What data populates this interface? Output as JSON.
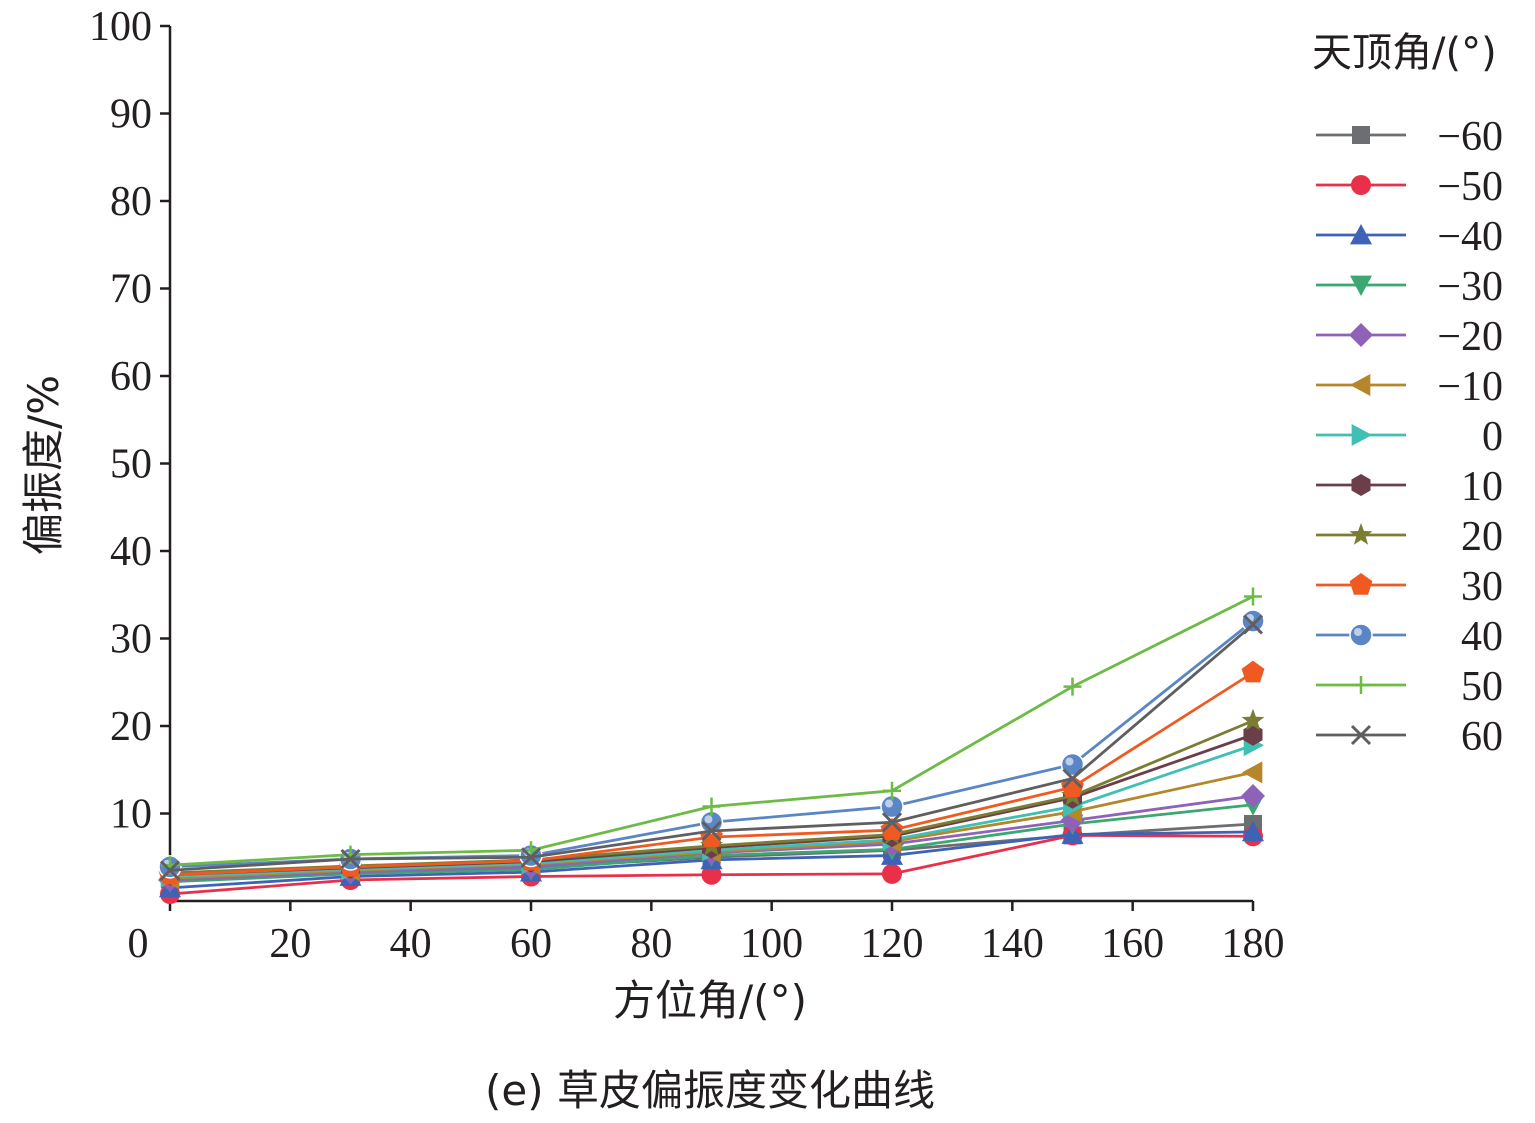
{
  "chart_data": {
    "type": "line",
    "caption": "(e) 草皮偏振度变化曲线",
    "xlabel": "方位角/(°)",
    "ylabel": "偏振度/%",
    "legend_title": "天顶角/(°)",
    "legend_position": "right",
    "xlim": [
      0,
      180
    ],
    "ylim": [
      0,
      100
    ],
    "x_ticks": [
      "0",
      "20",
      "40",
      "60",
      "80",
      "100",
      "120",
      "140",
      "160",
      "180"
    ],
    "x_tick_values": [
      0,
      20,
      40,
      60,
      80,
      100,
      120,
      140,
      160,
      180
    ],
    "y_ticks": [
      "10",
      "20",
      "30",
      "40",
      "50",
      "60",
      "70",
      "80",
      "90",
      "100"
    ],
    "y_tick_values": [
      10,
      20,
      30,
      40,
      50,
      60,
      70,
      80,
      90,
      100
    ],
    "grid": false,
    "x": [
      0,
      30,
      60,
      90,
      120,
      150,
      180
    ],
    "series": [
      {
        "name": "−60",
        "color": "#6d6e71",
        "marker": "square",
        "values": [
          2.5,
          3.2,
          3.8,
          5.0,
          5.8,
          7.5,
          8.8
        ]
      },
      {
        "name": "−50",
        "color": "#e8304a",
        "marker": "circle",
        "values": [
          0.8,
          2.4,
          2.8,
          3.0,
          3.1,
          7.5,
          7.4
        ]
      },
      {
        "name": "−40",
        "color": "#3e63b6",
        "marker": "triangle-up",
        "values": [
          1.5,
          2.8,
          3.3,
          4.7,
          5.2,
          7.6,
          7.9
        ]
      },
      {
        "name": "−30",
        "color": "#3aa870",
        "marker": "triangle-down",
        "values": [
          2.2,
          3.1,
          3.6,
          5.2,
          5.9,
          8.8,
          11.0
        ]
      },
      {
        "name": "−20",
        "color": "#8e62b8",
        "marker": "diamond",
        "values": [
          2.4,
          3.3,
          3.9,
          5.5,
          6.5,
          9.2,
          12.0
        ]
      },
      {
        "name": "−10",
        "color": "#b5862a",
        "marker": "triangle-left",
        "values": [
          2.6,
          3.5,
          4.2,
          5.6,
          6.8,
          10.2,
          14.7
        ]
      },
      {
        "name": "0",
        "color": "#40bfb4",
        "marker": "triangle-right",
        "values": [
          2.8,
          3.6,
          4.3,
          5.8,
          7.0,
          10.8,
          17.8
        ]
      },
      {
        "name": "10",
        "color": "#6b3e4a",
        "marker": "hexagon",
        "values": [
          3.0,
          3.8,
          4.5,
          6.1,
          7.4,
          11.8,
          19.0
        ]
      },
      {
        "name": "20",
        "color": "#7a7d32",
        "marker": "star",
        "values": [
          3.2,
          4.0,
          4.7,
          6.3,
          7.6,
          12.0,
          20.6
        ]
      },
      {
        "name": "30",
        "color": "#ef5a23",
        "marker": "pentagon",
        "values": [
          3.0,
          3.9,
          4.6,
          7.3,
          8.1,
          13.0,
          26.1
        ]
      },
      {
        "name": "40",
        "color": "#5b86c5",
        "marker": "sphere",
        "values": [
          3.9,
          4.8,
          5.2,
          9.0,
          10.8,
          15.6,
          32.0
        ]
      },
      {
        "name": "50",
        "color": "#6dbb46",
        "marker": "plus",
        "values": [
          4.1,
          5.3,
          5.8,
          10.8,
          12.6,
          24.5,
          34.8
        ]
      },
      {
        "name": "60",
        "color": "#5f5f62",
        "marker": "x",
        "values": [
          3.5,
          4.8,
          5.0,
          8.0,
          9.0,
          14.0,
          31.6
        ]
      }
    ]
  }
}
